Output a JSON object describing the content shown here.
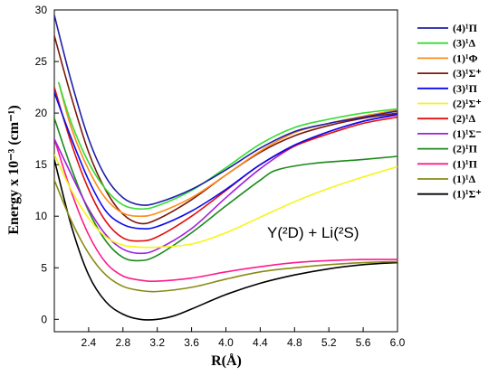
{
  "chart_data": {
    "type": "line",
    "title": "",
    "xlabel": "R(Å)",
    "ylabel": "Energy x 10⁻³ (cm⁻¹)",
    "xlim": [
      2.0,
      6.0
    ],
    "ylim": [
      -1.2,
      30
    ],
    "xticks": [
      2.4,
      2.8,
      3.2,
      3.6,
      4.0,
      4.4,
      4.8,
      5.2,
      5.6,
      6.0
    ],
    "xtick_labels": [
      "2.4",
      "2.8",
      "3.2",
      "3.6",
      "4.0",
      "4.4",
      "4.8",
      "5.2",
      "5.6",
      "6.0"
    ],
    "yticks": [
      0,
      5,
      10,
      15,
      20,
      25,
      30
    ],
    "ytick_labels": [
      "0",
      "5",
      "10",
      "15",
      "20",
      "25",
      "30"
    ],
    "grid": false,
    "legend_position": "right",
    "annotation": "Y(²D) + Li(²S)",
    "series": [
      {
        "name": "(4)¹Π",
        "color": "#1f1fa8",
        "points": [
          [
            2.0,
            29.5
          ],
          [
            2.2,
            23
          ],
          [
            2.4,
            17.5
          ],
          [
            2.6,
            13.8
          ],
          [
            2.8,
            11.8
          ],
          [
            3.0,
            11.1
          ],
          [
            3.2,
            11.3
          ],
          [
            3.6,
            12.6
          ],
          [
            4.0,
            14.5
          ],
          [
            4.4,
            16.6
          ],
          [
            4.8,
            18.2
          ],
          [
            5.2,
            19.0
          ],
          [
            5.6,
            19.6
          ],
          [
            6.0,
            20.2
          ]
        ]
      },
      {
        "name": "(3)¹Δ",
        "color": "#33dd33",
        "points": [
          [
            2.05,
            23
          ],
          [
            2.2,
            19
          ],
          [
            2.4,
            15.2
          ],
          [
            2.6,
            12.6
          ],
          [
            2.8,
            11.1
          ],
          [
            3.0,
            10.7
          ],
          [
            3.2,
            11.0
          ],
          [
            3.6,
            12.5
          ],
          [
            4.0,
            14.7
          ],
          [
            4.4,
            17.0
          ],
          [
            4.8,
            18.6
          ],
          [
            5.2,
            19.4
          ],
          [
            5.6,
            20.0
          ],
          [
            6.0,
            20.4
          ]
        ]
      },
      {
        "name": "(1)¹Φ",
        "color": "#ff8c1a",
        "points": [
          [
            2.05,
            23
          ],
          [
            2.2,
            18.5
          ],
          [
            2.4,
            14.5
          ],
          [
            2.6,
            11.7
          ],
          [
            2.8,
            10.3
          ],
          [
            3.0,
            10.0
          ],
          [
            3.2,
            10.3
          ],
          [
            3.6,
            11.8
          ],
          [
            4.0,
            14.0
          ],
          [
            4.4,
            16.3
          ],
          [
            4.8,
            18.1
          ],
          [
            5.2,
            19.0
          ],
          [
            5.6,
            19.7
          ],
          [
            6.0,
            20.3
          ]
        ]
      },
      {
        "name": "(3)¹Σ⁺",
        "color": "#7a1a0a",
        "points": [
          [
            2.0,
            27.5
          ],
          [
            2.2,
            21.5
          ],
          [
            2.4,
            16.2
          ],
          [
            2.6,
            12.5
          ],
          [
            2.8,
            10.2
          ],
          [
            3.0,
            9.3
          ],
          [
            3.2,
            9.7
          ],
          [
            3.6,
            11.6
          ],
          [
            4.0,
            14.0
          ],
          [
            4.4,
            16.2
          ],
          [
            4.8,
            17.8
          ],
          [
            5.2,
            18.8
          ],
          [
            5.6,
            19.5
          ],
          [
            6.0,
            20.0
          ]
        ]
      },
      {
        "name": "(3)¹Π",
        "color": "#0a0aee",
        "points": [
          [
            2.0,
            22.0
          ],
          [
            2.2,
            17.5
          ],
          [
            2.4,
            13.5
          ],
          [
            2.6,
            10.5
          ],
          [
            2.8,
            9.2
          ],
          [
            3.0,
            8.8
          ],
          [
            3.2,
            9.0
          ],
          [
            3.6,
            10.5
          ],
          [
            4.0,
            12.6
          ],
          [
            4.4,
            15.0
          ],
          [
            4.8,
            16.9
          ],
          [
            5.2,
            18.2
          ],
          [
            5.6,
            19.2
          ],
          [
            6.0,
            19.9
          ]
        ]
      },
      {
        "name": "(2)¹Σ⁺",
        "color": "#f5f51a",
        "points": [
          [
            2.0,
            16.0
          ],
          [
            2.2,
            12.5
          ],
          [
            2.4,
            9.8
          ],
          [
            2.6,
            8.0
          ],
          [
            2.8,
            7.2
          ],
          [
            3.0,
            7.0
          ],
          [
            3.2,
            7.0
          ],
          [
            3.6,
            7.3
          ],
          [
            4.0,
            8.4
          ],
          [
            4.4,
            9.9
          ],
          [
            4.8,
            11.4
          ],
          [
            5.2,
            12.7
          ],
          [
            5.6,
            13.8
          ],
          [
            6.0,
            14.8
          ]
        ]
      },
      {
        "name": "(2)¹Δ",
        "color": "#e01010",
        "points": [
          [
            2.0,
            22.5
          ],
          [
            2.2,
            17.0
          ],
          [
            2.4,
            12.6
          ],
          [
            2.6,
            9.5
          ],
          [
            2.8,
            7.9
          ],
          [
            3.0,
            7.6
          ],
          [
            3.2,
            8.0
          ],
          [
            3.6,
            10.0
          ],
          [
            4.0,
            12.5
          ],
          [
            4.4,
            15.0
          ],
          [
            4.8,
            16.8
          ],
          [
            5.2,
            18.0
          ],
          [
            5.6,
            19.0
          ],
          [
            6.0,
            19.6
          ]
        ]
      },
      {
        "name": "(1)¹Σ⁻",
        "color": "#a020e0",
        "points": [
          [
            2.0,
            17.5
          ],
          [
            2.2,
            14.0
          ],
          [
            2.4,
            10.7
          ],
          [
            2.6,
            8.2
          ],
          [
            2.8,
            6.8
          ],
          [
            3.0,
            6.4
          ],
          [
            3.2,
            6.8
          ],
          [
            3.6,
            8.8
          ],
          [
            4.0,
            11.8
          ],
          [
            4.4,
            14.6
          ],
          [
            4.8,
            16.8
          ],
          [
            5.2,
            18.2
          ],
          [
            5.6,
            19.2
          ],
          [
            6.0,
            19.8
          ]
        ]
      },
      {
        "name": "(2)¹Π",
        "color": "#1a8a1a",
        "points": [
          [
            2.0,
            19.5
          ],
          [
            2.2,
            14.6
          ],
          [
            2.4,
            10.5
          ],
          [
            2.6,
            7.6
          ],
          [
            2.8,
            6.0
          ],
          [
            3.0,
            5.7
          ],
          [
            3.2,
            6.2
          ],
          [
            3.6,
            8.4
          ],
          [
            4.0,
            11.0
          ],
          [
            4.4,
            13.5
          ],
          [
            4.6,
            14.5
          ],
          [
            5.0,
            15.1
          ],
          [
            5.6,
            15.5
          ],
          [
            6.0,
            15.8
          ]
        ]
      },
      {
        "name": "(1)¹Π",
        "color": "#ff1a8c",
        "points": [
          [
            2.0,
            17.5
          ],
          [
            2.2,
            12.3
          ],
          [
            2.4,
            8.2
          ],
          [
            2.6,
            5.5
          ],
          [
            2.8,
            4.2
          ],
          [
            3.0,
            3.8
          ],
          [
            3.2,
            3.7
          ],
          [
            3.6,
            4.0
          ],
          [
            4.0,
            4.6
          ],
          [
            4.4,
            5.1
          ],
          [
            4.8,
            5.5
          ],
          [
            5.2,
            5.7
          ],
          [
            5.6,
            5.8
          ],
          [
            6.0,
            5.8
          ]
        ]
      },
      {
        "name": "(1)¹Δ",
        "color": "#8a8a14",
        "points": [
          [
            2.0,
            13.5
          ],
          [
            2.2,
            9.5
          ],
          [
            2.4,
            6.4
          ],
          [
            2.6,
            4.3
          ],
          [
            2.8,
            3.2
          ],
          [
            3.0,
            2.8
          ],
          [
            3.2,
            2.7
          ],
          [
            3.6,
            3.1
          ],
          [
            4.0,
            3.9
          ],
          [
            4.4,
            4.6
          ],
          [
            4.8,
            5.0
          ],
          [
            5.2,
            5.3
          ],
          [
            5.6,
            5.5
          ],
          [
            6.0,
            5.6
          ]
        ]
      },
      {
        "name": "(1)¹Σ⁺",
        "color": "#000000",
        "points": [
          [
            2.0,
            15.5
          ],
          [
            2.2,
            9.0
          ],
          [
            2.4,
            4.3
          ],
          [
            2.6,
            1.7
          ],
          [
            2.8,
            0.5
          ],
          [
            3.0,
            0.0
          ],
          [
            3.2,
            0.0
          ],
          [
            3.4,
            0.35
          ],
          [
            3.6,
            1.0
          ],
          [
            4.0,
            2.4
          ],
          [
            4.4,
            3.5
          ],
          [
            4.8,
            4.3
          ],
          [
            5.2,
            4.9
          ],
          [
            5.6,
            5.3
          ],
          [
            6.0,
            5.5
          ]
        ]
      }
    ]
  }
}
